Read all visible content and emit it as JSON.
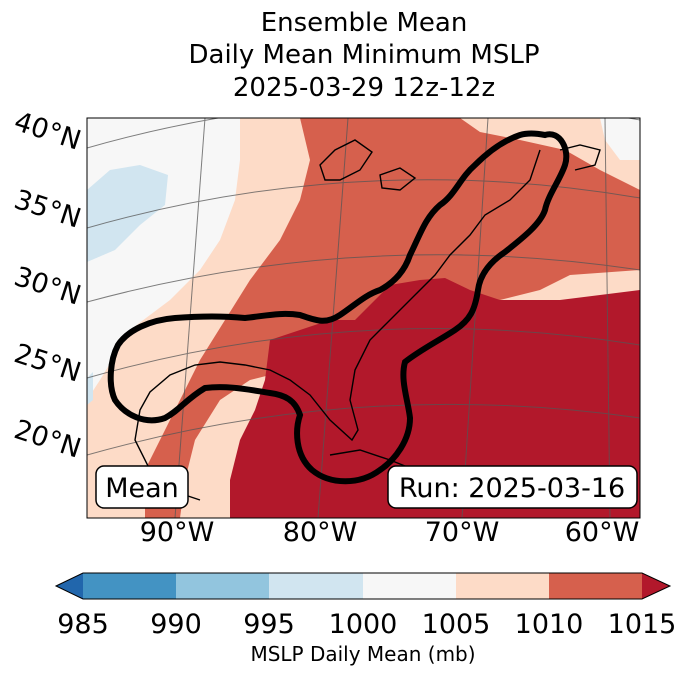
{
  "title": {
    "line1": "Ensemble Mean",
    "line2": "Daily Mean Minimum MSLP",
    "line3": "2025-03-29 12z-12z"
  },
  "map": {
    "lat_labels": [
      "40°N",
      "35°N",
      "30°N",
      "25°N",
      "20°N"
    ],
    "lon_labels": [
      "90°W",
      "80°W",
      "70°W",
      "60°W"
    ],
    "left_box": "Mean",
    "right_box": "Run: 2025-03-16",
    "colors": {
      "lt985": "#2166ac",
      "b985_990": "#4393c3",
      "b990_995": "#92c5de",
      "b995_1000": "#d1e5f0",
      "b1000_1005": "#f7f7f7",
      "b1005_1010": "#fddbc7",
      "b1010_1015": "#d6604d",
      "gt1015": "#b2182b"
    }
  },
  "colorbar": {
    "ticks": [
      "985",
      "990",
      "995",
      "1000",
      "1005",
      "1010",
      "1015"
    ],
    "label": "MSLP Daily Mean (mb)"
  }
}
